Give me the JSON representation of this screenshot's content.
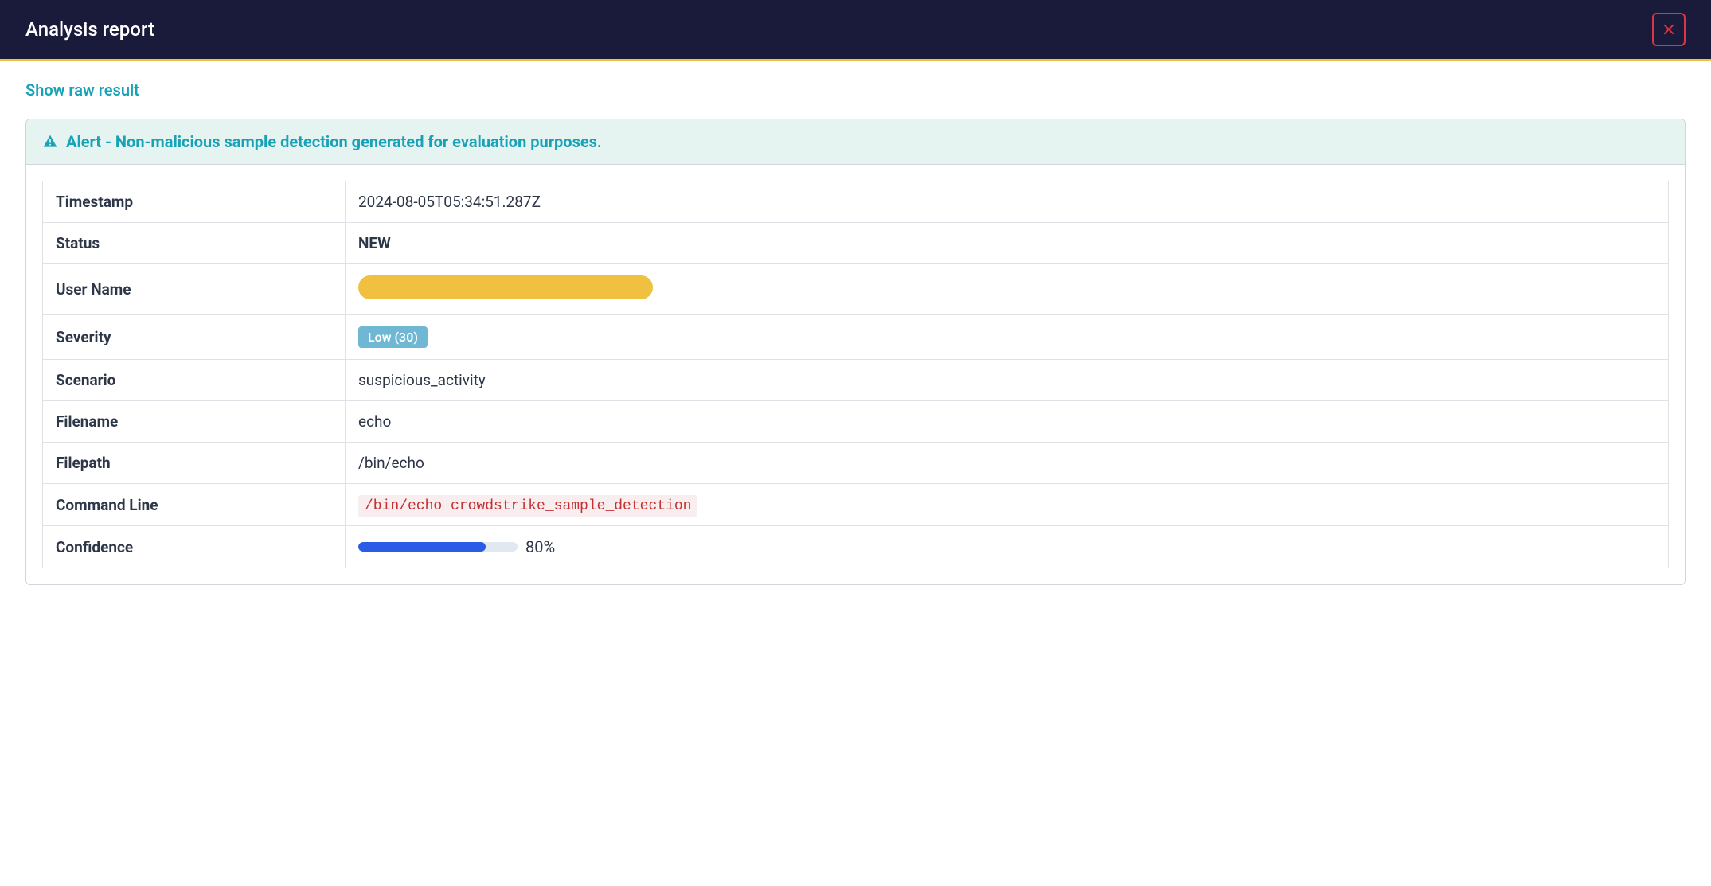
{
  "header": {
    "title": "Analysis report",
    "bg_color": "#1a1b3a",
    "accent_color": "#f0c040",
    "close_color": "#dc3545"
  },
  "raw_result": {
    "label": "Show raw result",
    "color": "#17a2b8"
  },
  "alert": {
    "text": "Alert - Non-malicious sample detection generated for evaluation purposes.",
    "text_color": "#17a2b8",
    "bg_color": "#e6f4f1"
  },
  "details": {
    "rows": [
      {
        "label": "Timestamp",
        "type": "text",
        "value": "2024-08-05T05:34:51.287Z"
      },
      {
        "label": "Status",
        "type": "bold",
        "value": "NEW"
      },
      {
        "label": "User Name",
        "type": "redacted",
        "redact_color": "#f0c040",
        "redact_width": 370
      },
      {
        "label": "Severity",
        "type": "badge",
        "value": "Low (30)",
        "badge_bg": "#6fb8d4",
        "badge_fg": "#ffffff"
      },
      {
        "label": "Scenario",
        "type": "text",
        "value": "suspicious_activity"
      },
      {
        "label": "Filename",
        "type": "text",
        "value": "echo"
      },
      {
        "label": "Filepath",
        "type": "text",
        "value": "/bin/echo"
      },
      {
        "label": "Command Line",
        "type": "code",
        "value": "/bin/echo crowdstrike_sample_detection",
        "code_bg": "#f8edef",
        "code_fg": "#c53030"
      },
      {
        "label": "Confidence",
        "type": "progress",
        "percent": 80,
        "bar_color": "#2b5ce6",
        "bar_bg": "#e2e8f0",
        "display": "80%"
      }
    ],
    "border_color": "#dee2e6",
    "label_col_width": 380
  }
}
